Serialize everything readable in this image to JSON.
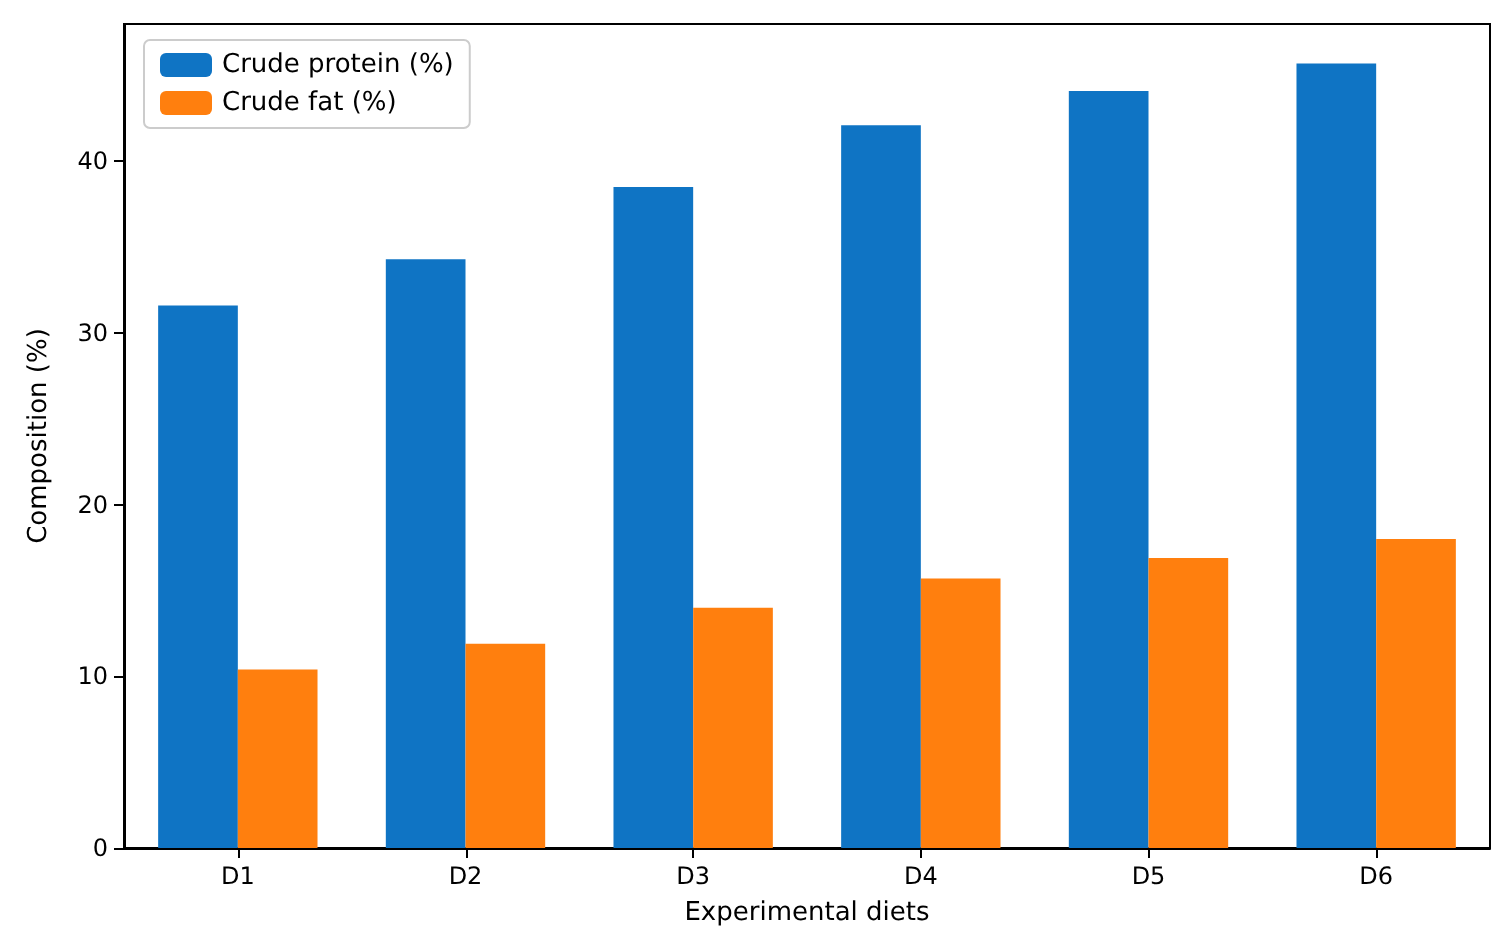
{
  "chart_data": {
    "type": "bar",
    "xlabel": "Experimental diets",
    "ylabel": "Composition (%)",
    "categories": [
      "D1",
      "D2",
      "D3",
      "D4",
      "D5",
      "D6"
    ],
    "series": [
      {
        "name": "Crude protein (%)",
        "color": "#0f74c4",
        "values": [
          31.6,
          34.3,
          38.5,
          42.1,
          44.1,
          45.7
        ]
      },
      {
        "name": "Crude fat (%)",
        "color": "#ff7f0e",
        "values": [
          10.4,
          11.9,
          14.0,
          15.7,
          16.9,
          18.0
        ]
      }
    ],
    "ylim": [
      0,
      48
    ],
    "yticks": [
      0,
      10,
      20,
      30,
      40
    ],
    "grid": false,
    "legend": "top left"
  }
}
